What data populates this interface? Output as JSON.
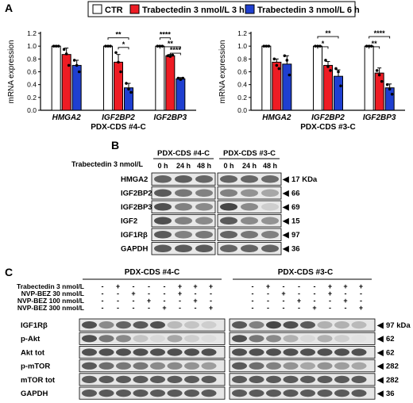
{
  "panels": {
    "a": "A",
    "b": "B",
    "c": "C"
  },
  "legend": {
    "items": [
      {
        "label": "CTR",
        "color": "#ffffff"
      },
      {
        "label": "Trabectedin 3 nmol/L 3 h",
        "color": "#ee1c24"
      },
      {
        "label": "Trabectedin 3 nmol/L 6 h",
        "color": "#1f3fd0"
      }
    ]
  },
  "chart_data": [
    {
      "type": "bar",
      "title": "PDX-CDS #4-C",
      "ylabel": "mRNA expression",
      "ylim": [
        0,
        1.2
      ],
      "yticks": [
        "0.0",
        "0.2",
        "0.4",
        "0.6",
        "0.8",
        "1.0",
        "1.2"
      ],
      "categories": [
        "HMGA2",
        "IGF2BP2",
        "IGF2BP3"
      ],
      "series": [
        {
          "name": "CTR",
          "values": [
            1.0,
            1.0,
            1.0
          ],
          "errors": [
            0,
            0,
            0
          ],
          "points": [
            [
              1.0,
              1.0,
              1.0
            ],
            [
              1.0,
              1.0,
              1.0
            ],
            [
              1.0,
              1.0,
              1.0
            ]
          ]
        },
        {
          "name": "Trabectedin 3 nmol/L 3 h",
          "values": [
            0.87,
            0.75,
            0.85
          ],
          "errors": [
            0.1,
            0.12,
            0.02
          ],
          "points": [
            [
              0.95,
              0.88,
              0.7
            ],
            [
              0.9,
              0.75,
              0.6
            ],
            [
              0.85,
              0.84,
              0.86
            ]
          ]
        },
        {
          "name": "Trabectedin 3 nmol/L 6 h",
          "values": [
            0.7,
            0.35,
            0.49
          ],
          "errors": [
            0.08,
            0.07,
            0.02
          ],
          "points": [
            [
              0.78,
              0.7,
              0.6
            ],
            [
              0.42,
              0.33,
              0.28
            ],
            [
              0.5,
              0.48,
              0.5
            ]
          ]
        }
      ],
      "significance": [
        {
          "category": 1,
          "from": 0,
          "to": 2,
          "label": "**",
          "level": 1.13
        },
        {
          "category": 1,
          "from": 1,
          "to": 2,
          "label": "*",
          "level": 0.98
        },
        {
          "category": 2,
          "from": 0,
          "to": 1,
          "label": "****",
          "level": 1.13
        },
        {
          "category": 2,
          "from": 0,
          "to": 2,
          "label": "**",
          "level": 0.99
        },
        {
          "category": 2,
          "from": 1,
          "to": 2,
          "label": "****",
          "level": 0.89
        }
      ]
    },
    {
      "type": "bar",
      "title": "PDX-CDS #3-C",
      "ylabel": "mRNA expression",
      "ylim": [
        0,
        1.2
      ],
      "yticks": [
        "0.0",
        "0.2",
        "0.4",
        "0.6",
        "0.8",
        "1.0",
        "1.2"
      ],
      "categories": [
        "HMGA2",
        "IGF2BP2",
        "IGF2BP3"
      ],
      "series": [
        {
          "name": "CTR",
          "values": [
            1.0,
            1.0,
            1.0
          ],
          "errors": [
            0,
            0,
            0
          ],
          "points": [
            [
              1.0,
              1.0,
              1.0
            ],
            [
              1.0,
              1.0,
              1.0
            ],
            [
              1.0,
              1.0,
              1.0
            ]
          ]
        },
        {
          "name": "Trabectedin 3 nmol/L 3 h",
          "values": [
            0.75,
            0.7,
            0.58
          ],
          "errors": [
            0.05,
            0.06,
            0.08
          ],
          "points": [
            [
              0.8,
              0.7,
              0.65
            ],
            [
              0.78,
              0.68,
              0.62
            ],
            [
              0.62,
              0.55,
              0.45
            ]
          ]
        },
        {
          "name": "Trabectedin 3 nmol/L 6 h",
          "values": [
            0.72,
            0.53,
            0.35
          ],
          "errors": [
            0.13,
            0.1,
            0.06
          ],
          "points": [
            [
              0.85,
              0.78,
              0.55
            ],
            [
              0.65,
              0.6,
              0.38
            ],
            [
              0.4,
              0.33,
              0.25
            ]
          ]
        }
      ],
      "significance": [
        {
          "category": 1,
          "from": 0,
          "to": 2,
          "label": "**",
          "level": 1.15
        },
        {
          "category": 1,
          "from": 0,
          "to": 1,
          "label": "*",
          "level": 0.99
        },
        {
          "category": 2,
          "from": 0,
          "to": 2,
          "label": "****",
          "level": 1.15
        },
        {
          "category": 2,
          "from": 0,
          "to": 1,
          "label": "**",
          "level": 0.99
        }
      ]
    }
  ],
  "blot_b": {
    "treatment_label": "Trabectedin 3 nmol/L",
    "groups": [
      {
        "title": "PDX-CDS #4-C",
        "lanes": [
          "0 h",
          "24 h",
          "48 h"
        ]
      },
      {
        "title": "PDX-CDS #3-C",
        "lanes": [
          "0 h",
          "24 h",
          "48 h"
        ]
      }
    ],
    "rows": [
      {
        "label": "HMGA2",
        "size": "17 KDa",
        "intensity": [
          [
            0.7,
            0.72,
            0.68
          ],
          [
            0.7,
            0.68,
            0.66
          ]
        ]
      },
      {
        "label": "IGF2BP2",
        "size": "66",
        "intensity": [
          [
            0.75,
            0.6,
            0.55
          ],
          [
            0.55,
            0.45,
            0.35
          ]
        ]
      },
      {
        "label": "IGF2BP3",
        "size": "69",
        "intensity": [
          [
            0.8,
            0.55,
            0.5
          ],
          [
            0.85,
            0.5,
            0.15
          ]
        ]
      },
      {
        "label": "IGF2",
        "size": "15",
        "intensity": [
          [
            0.8,
            0.55,
            0.5
          ],
          [
            0.75,
            0.5,
            0.45
          ]
        ]
      },
      {
        "label": "IGF1Rβ",
        "size": "97",
        "intensity": [
          [
            0.75,
            0.55,
            0.6
          ],
          [
            0.7,
            0.6,
            0.55
          ]
        ]
      },
      {
        "label": "GAPDH",
        "size": "36",
        "intensity": [
          [
            0.75,
            0.75,
            0.75
          ],
          [
            0.7,
            0.7,
            0.7
          ]
        ]
      }
    ]
  },
  "blot_c": {
    "groups": [
      "PDX-CDS #4-C",
      "PDX-CDS #3-C"
    ],
    "treatments": [
      {
        "label": "Trabectedin 3 nmol/L",
        "marks": [
          "-",
          "+",
          "-",
          "-",
          "-",
          "+",
          "+",
          "+"
        ]
      },
      {
        "label": "NVP-BEZ 30 nmol/L",
        "marks": [
          "-",
          "-",
          "+",
          "-",
          "-",
          "+",
          "-",
          "-"
        ]
      },
      {
        "label": "NVP-BEZ 100 nmol/L",
        "marks": [
          "-",
          "-",
          "-",
          "+",
          "-",
          "-",
          "+",
          "-"
        ]
      },
      {
        "label": "NVP-BEZ 300 nmol/L",
        "marks": [
          "-",
          "-",
          "-",
          "-",
          "+",
          "-",
          "-",
          "+"
        ]
      }
    ],
    "rows": [
      {
        "label": "IGF1Rβ",
        "size": "97 kDa",
        "intensity": [
          [
            0.8,
            0.5,
            0.7,
            0.75,
            0.8,
            0.25,
            0.2,
            0.15
          ],
          [
            0.75,
            0.55,
            0.85,
            0.8,
            0.75,
            0.3,
            0.3,
            0.25
          ]
        ]
      },
      {
        "label": "p-Akt",
        "size": "62",
        "intensity": [
          [
            0.8,
            0.6,
            0.5,
            0.2,
            0.1,
            0.35,
            0.15,
            0.08
          ],
          [
            0.8,
            0.6,
            0.5,
            0.3,
            0.1,
            0.3,
            0.15,
            0.05
          ]
        ]
      },
      {
        "label": "Akt tot",
        "size": "62",
        "intensity": [
          [
            0.8,
            0.8,
            0.8,
            0.8,
            0.8,
            0.8,
            0.8,
            0.8
          ],
          [
            0.8,
            0.8,
            0.8,
            0.8,
            0.8,
            0.8,
            0.8,
            0.8
          ]
        ]
      },
      {
        "label": "p-mTOR",
        "size": "282",
        "intensity": [
          [
            0.75,
            0.65,
            0.6,
            0.6,
            0.5,
            0.5,
            0.45,
            0.4
          ],
          [
            0.75,
            0.65,
            0.55,
            0.45,
            0.35,
            0.45,
            0.4,
            0.35
          ]
        ]
      },
      {
        "label": "mTOR tot",
        "size": "282",
        "intensity": [
          [
            0.75,
            0.75,
            0.75,
            0.75,
            0.75,
            0.75,
            0.75,
            0.75
          ],
          [
            0.75,
            0.75,
            0.75,
            0.75,
            0.75,
            0.75,
            0.75,
            0.75
          ]
        ]
      },
      {
        "label": "GAPDH",
        "size": "36",
        "intensity": [
          [
            0.75,
            0.75,
            0.75,
            0.75,
            0.75,
            0.75,
            0.75,
            0.75
          ],
          [
            0.75,
            0.75,
            0.75,
            0.75,
            0.75,
            0.75,
            0.75,
            0.75
          ]
        ]
      }
    ]
  }
}
